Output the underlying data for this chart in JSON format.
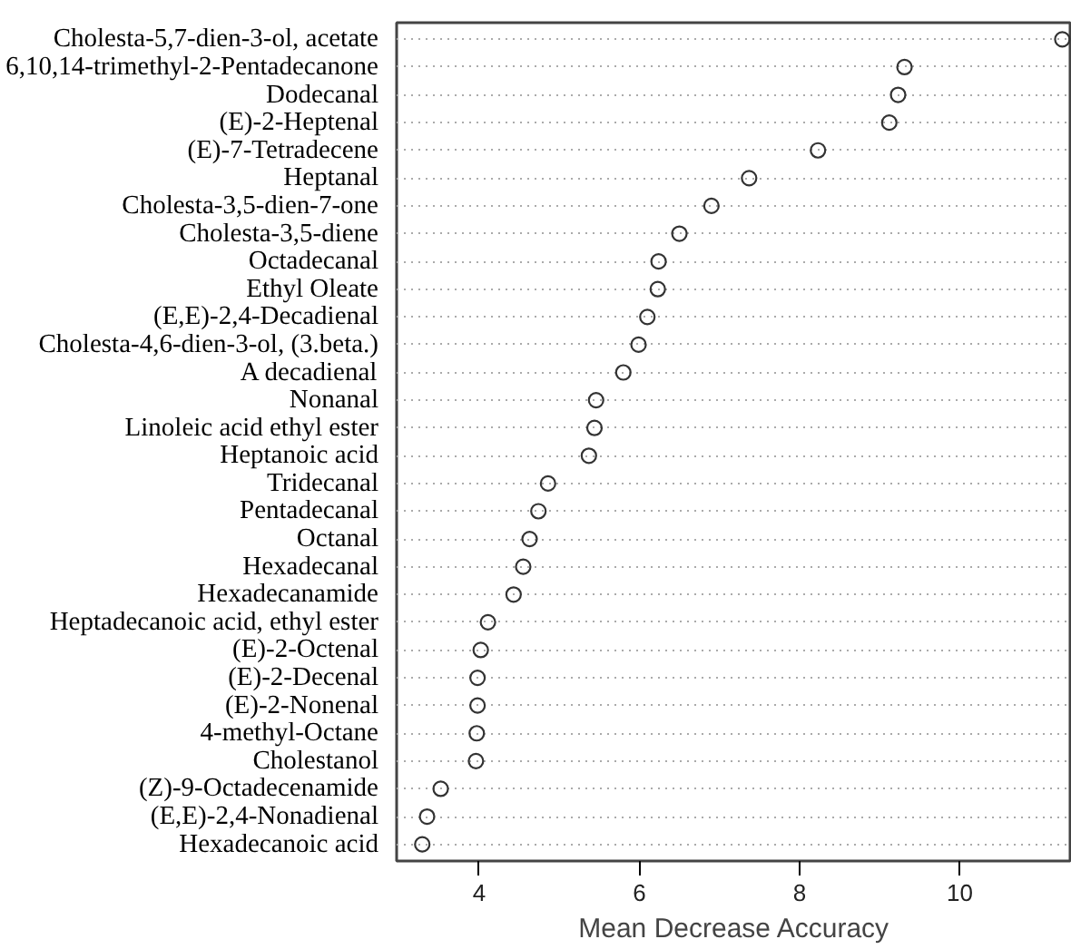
{
  "chart_data": {
    "type": "scatter",
    "orientation": "horizontal",
    "xlabel": "Mean Decrease Accuracy",
    "categories": [
      "Cholesta-5,7-dien-3-ol, acetate",
      "6,10,14-trimethyl-2-Pentadecanone",
      "Dodecanal",
      "(E)-2-Heptenal",
      "(E)-7-Tetradecene",
      "Heptanal",
      "Cholesta-3,5-dien-7-one",
      "Cholesta-3,5-diene",
      "Octadecanal",
      "Ethyl Oleate",
      "(E,E)-2,4-Decadienal",
      "Cholesta-4,6-dien-3-ol, (3.beta.)",
      "A decadienal",
      "Nonanal",
      "Linoleic acid ethyl ester",
      "Heptanoic acid",
      "Tridecanal",
      "Pentadecanal",
      "Octanal",
      "Hexadecanal",
      "Hexadecanamide",
      "Heptadecanoic acid, ethyl ester",
      "(E)-2-Octenal",
      "(E)-2-Decenal",
      "(E)-2-Nonenal",
      "4-methyl-Octane",
      "Cholestanol",
      "(Z)-9-Octadecenamide",
      "(E,E)-2,4-Nonadienal",
      "Hexadecanoic acid"
    ],
    "values": [
      11.28,
      9.31,
      9.23,
      9.12,
      8.23,
      7.37,
      6.9,
      6.5,
      6.24,
      6.23,
      6.1,
      5.99,
      5.8,
      5.46,
      5.44,
      5.37,
      4.86,
      4.74,
      4.63,
      4.55,
      4.43,
      4.11,
      4.02,
      3.98,
      3.98,
      3.97,
      3.96,
      3.52,
      3.35,
      3.29
    ],
    "color": "#333333",
    "xlim": [
      2.97,
      11.4
    ],
    "xticks": [
      4,
      6,
      8,
      10
    ],
    "grid": "y",
    "marker": "circle"
  }
}
